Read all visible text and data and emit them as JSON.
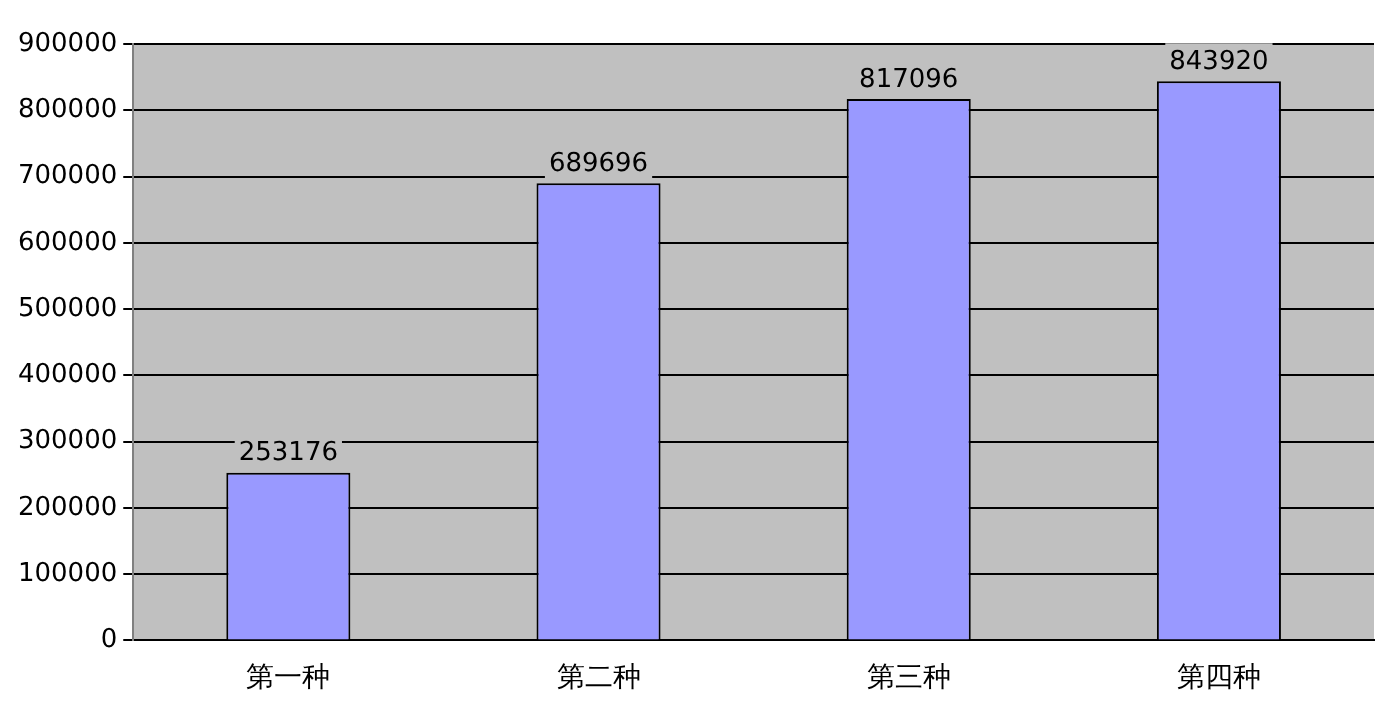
{
  "chart_data": {
    "type": "bar",
    "categories": [
      "第一种",
      "第二种",
      "第三种",
      "第四种"
    ],
    "values": [
      253176,
      689696,
      817096,
      843920
    ],
    "color": "#9999ff",
    "ylim": [
      0,
      900000
    ],
    "yticks": [
      0,
      100000,
      200000,
      300000,
      400000,
      500000,
      600000,
      700000,
      800000,
      900000
    ],
    "grid": "y",
    "data_labels": true,
    "legend": false
  }
}
